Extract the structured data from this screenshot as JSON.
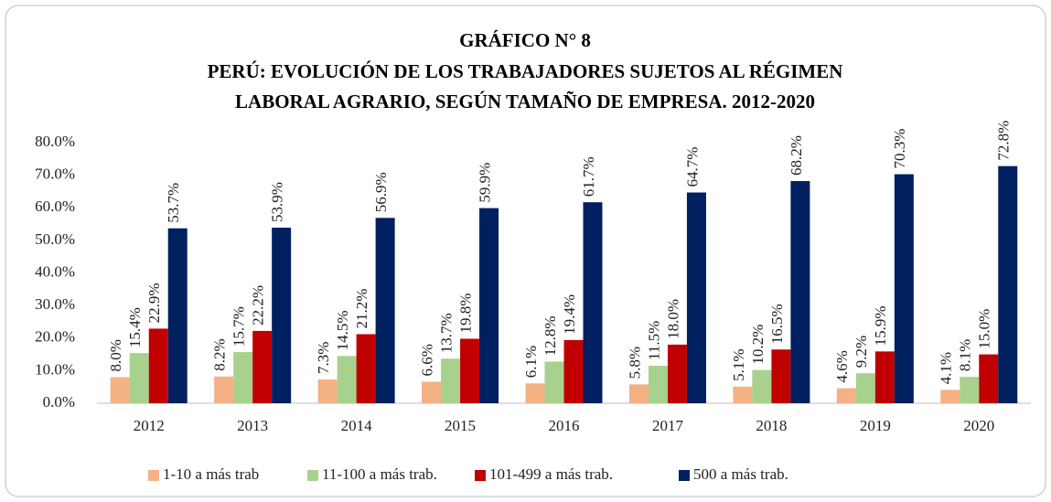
{
  "chart_data": {
    "type": "bar",
    "title": [
      "GRÁFICO N° 8",
      "PERÚ: EVOLUCIÓN DE LOS TRABAJADORES SUJETOS AL RÉGIMEN",
      "LABORAL AGRARIO, SEGÚN TAMAÑO DE EMPRESA. 2012-2020"
    ],
    "categories": [
      "2012",
      "2013",
      "2014",
      "2015",
      "2016",
      "2017",
      "2018",
      "2019",
      "2020"
    ],
    "series": [
      {
        "name": "1-10 a más trab",
        "color": "#f4b183",
        "values": [
          8.0,
          8.2,
          7.3,
          6.6,
          6.1,
          5.8,
          5.1,
          4.6,
          4.1
        ],
        "value_labels": [
          "8.0%",
          "8.2%",
          "7.3%",
          "6.6%",
          "6.1%",
          "5.8%",
          "5.1%",
          "4.6%",
          "4.1%"
        ]
      },
      {
        "name": "11-100 a más trab.",
        "color": "#a9d18e",
        "values": [
          15.4,
          15.7,
          14.5,
          13.7,
          12.8,
          11.5,
          10.2,
          9.2,
          8.1
        ],
        "value_labels": [
          "15.4%",
          "15.7%",
          "14.5%",
          "13.7%",
          "12.8%",
          "11.5%",
          "10.2%",
          "9.2%",
          "8.1%"
        ]
      },
      {
        "name": "101-499 a más trab.",
        "color": "#c00000",
        "values": [
          22.9,
          22.2,
          21.2,
          19.8,
          19.4,
          18.0,
          16.5,
          15.9,
          15.0
        ],
        "value_labels": [
          "22.9%",
          "22.2%",
          "21.2%",
          "19.8%",
          "19.4%",
          "18.0%",
          "16.5%",
          "15.9%",
          "15.0%"
        ]
      },
      {
        "name": "500 a más trab.",
        "color": "#002060",
        "values": [
          53.7,
          53.9,
          56.9,
          59.9,
          61.7,
          64.7,
          68.2,
          70.3,
          72.8
        ],
        "value_labels": [
          "53.7%",
          "53.9%",
          "56.9%",
          "59.9%",
          "61.7%",
          "64.7%",
          "68.2%",
          "70.3%",
          "72.8%"
        ]
      }
    ],
    "ylim": [
      0,
      80
    ],
    "yticks": [
      {
        "value": 0,
        "label": "0.0%"
      },
      {
        "value": 10,
        "label": "10.0%"
      },
      {
        "value": 20,
        "label": "20.0%"
      },
      {
        "value": 30,
        "label": "30.0%"
      },
      {
        "value": 40,
        "label": "40.0%"
      },
      {
        "value": 50,
        "label": "50.0%"
      },
      {
        "value": 60,
        "label": "60.0%"
      },
      {
        "value": 70,
        "label": "70.0%"
      },
      {
        "value": 80,
        "label": "80.0%"
      }
    ],
    "grid": false,
    "legend": "bottom"
  }
}
